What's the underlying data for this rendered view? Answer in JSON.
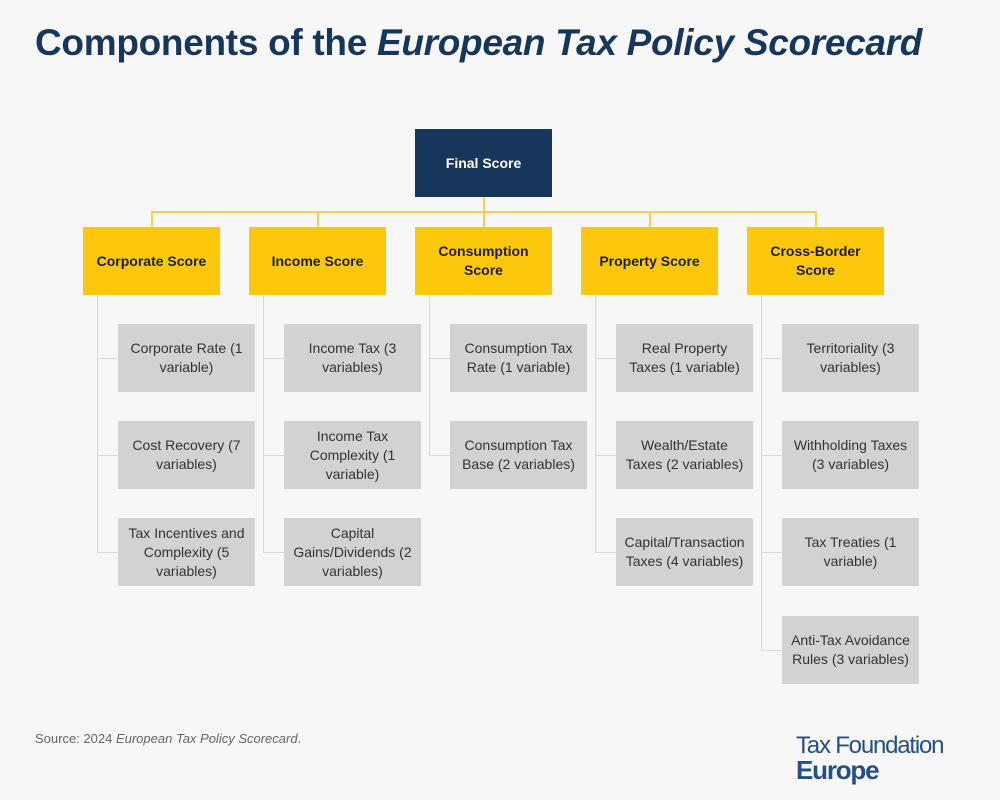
{
  "title": {
    "main": "Components of the ",
    "italic": "European Tax Policy Scorecard"
  },
  "colors": {
    "final": "#17365c",
    "score": "#fdc80b",
    "child": "#d2d2d2",
    "title": "#17365c"
  },
  "final": "Final Score",
  "columns": [
    {
      "label": "Corporate Score",
      "children": [
        "Corporate Rate (1 variable)",
        "Cost Recovery (7 variables)",
        "Tax Incentives and Complexity (5 variables)"
      ]
    },
    {
      "label": "Income Score",
      "children": [
        "Income Tax (3 variables)",
        "Income Tax Complexity (1 variable)",
        "Capital Gains/Dividends (2 variables)"
      ]
    },
    {
      "label": "Consumption Score",
      "children": [
        "Consumption Tax Rate (1 variable)",
        "Consumption Tax Base (2 variables)"
      ]
    },
    {
      "label": "Property Score",
      "children": [
        "Real Property Taxes (1 variable)",
        "Wealth/Estate Taxes (2 variables)",
        "Capital/Transaction Taxes (4 variables)"
      ]
    },
    {
      "label": "Cross-Border Score",
      "children": [
        "Territoriality (3 variables)",
        "Withholding Taxes (3 variables)",
        "Tax Treaties (1 variable)",
        "Anti-Tax Avoidance Rules (3 variables)"
      ]
    }
  ],
  "source": {
    "prefix": "Source: 2024 ",
    "italic": "European Tax Policy Scorecard",
    "suffix": "."
  },
  "logo": {
    "line1": "Tax Foundation",
    "line2": "Europe"
  }
}
